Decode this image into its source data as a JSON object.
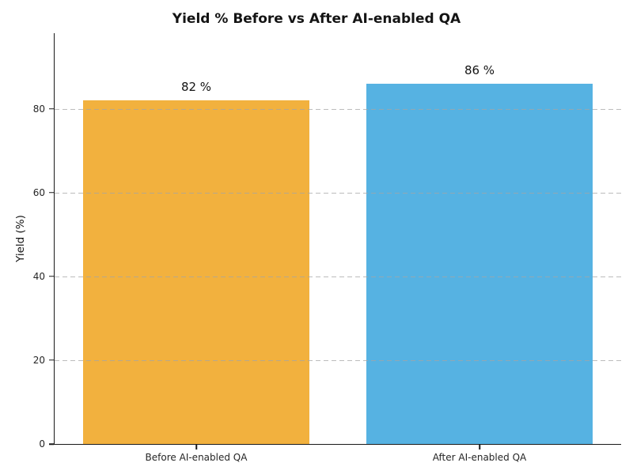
{
  "chart_data": {
    "type": "bar",
    "title": "Yield % Before vs After AI-enabled QA",
    "categories": [
      "Before AI-enabled QA",
      "After AI-enabled QA"
    ],
    "values": [
      82,
      86
    ],
    "value_labels": [
      "82 %",
      "86 %"
    ],
    "bar_colors": [
      "#f2b13e",
      "#56b2e2"
    ],
    "xlabel": "",
    "ylabel": "Yield (%)",
    "ylim": [
      0,
      98
    ],
    "yticks": [
      0,
      20,
      40,
      60,
      80
    ],
    "grid": "horizontal-dashed",
    "legend": "none"
  }
}
